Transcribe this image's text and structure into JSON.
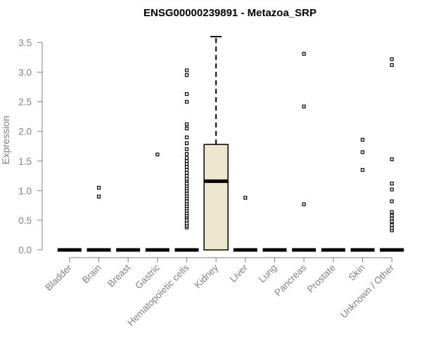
{
  "chart_data": {
    "type": "box",
    "title": "ENSG00000239891 - Metazoa_SRP",
    "xlabel": "",
    "ylabel": "Expression",
    "ylim": [
      0,
      3.6
    ],
    "yticks": [
      "0.0",
      "0.5",
      "1.0",
      "1.5",
      "2.0",
      "2.5",
      "3.0",
      "3.5"
    ],
    "grid": false,
    "box_fill": "#ede7cf",
    "categories": [
      "Bladder",
      "Brain",
      "Breast",
      "Gastric",
      "Hematopoietic cells",
      "Kidney",
      "Liver",
      "Lung",
      "Pancreas",
      "Prostate",
      "Skin",
      "Unknown / Other"
    ],
    "boxes": [
      {
        "q1": 0,
        "median": 0,
        "q3": 0,
        "whisker_low": 0,
        "whisker_high": 0,
        "outliers": []
      },
      {
        "q1": 0,
        "median": 0,
        "q3": 0,
        "whisker_low": 0,
        "whisker_high": 0,
        "outliers": [
          0.9,
          1.05
        ]
      },
      {
        "q1": 0,
        "median": 0,
        "q3": 0,
        "whisker_low": 0,
        "whisker_high": 0,
        "outliers": []
      },
      {
        "q1": 0,
        "median": 0,
        "q3": 0,
        "whisker_low": 0,
        "whisker_high": 0,
        "outliers": [
          1.61
        ]
      },
      {
        "q1": 0,
        "median": 0,
        "q3": 0,
        "whisker_low": 0,
        "whisker_high": 0,
        "outliers": [
          0.38,
          0.41,
          0.45,
          0.5,
          0.55,
          0.58,
          0.62,
          0.66,
          0.7,
          0.74,
          0.78,
          0.82,
          0.87,
          0.91,
          0.95,
          1.0,
          1.04,
          1.08,
          1.12,
          1.17,
          1.2,
          1.25,
          1.3,
          1.35,
          1.4,
          1.45,
          1.5,
          1.55,
          1.62,
          1.7,
          1.8,
          1.9,
          2.05,
          2.12,
          2.5,
          2.63,
          2.95,
          3.03
        ]
      },
      {
        "q1": 0,
        "median": 1.16,
        "q3": 1.78,
        "whisker_low": 0,
        "whisker_high": 3.6,
        "outliers": []
      },
      {
        "q1": 0,
        "median": 0,
        "q3": 0,
        "whisker_low": 0,
        "whisker_high": 0,
        "outliers": [
          0.88
        ]
      },
      {
        "q1": 0,
        "median": 0,
        "q3": 0,
        "whisker_low": 0,
        "whisker_high": 0,
        "outliers": []
      },
      {
        "q1": 0,
        "median": 0,
        "q3": 0,
        "whisker_low": 0,
        "whisker_high": 0,
        "outliers": [
          0.77,
          2.42,
          3.31
        ]
      },
      {
        "q1": 0,
        "median": 0,
        "q3": 0,
        "whisker_low": 0,
        "whisker_high": 0,
        "outliers": []
      },
      {
        "q1": 0,
        "median": 0,
        "q3": 0,
        "whisker_low": 0,
        "whisker_high": 0,
        "outliers": [
          1.35,
          1.65,
          1.86
        ]
      },
      {
        "q1": 0,
        "median": 0,
        "q3": 0,
        "whisker_low": 0,
        "whisker_high": 0,
        "outliers": [
          0.33,
          0.37,
          0.42,
          0.48,
          0.53,
          0.58,
          0.64,
          0.82,
          1.02,
          1.12,
          1.53,
          3.12,
          3.22
        ]
      }
    ]
  }
}
